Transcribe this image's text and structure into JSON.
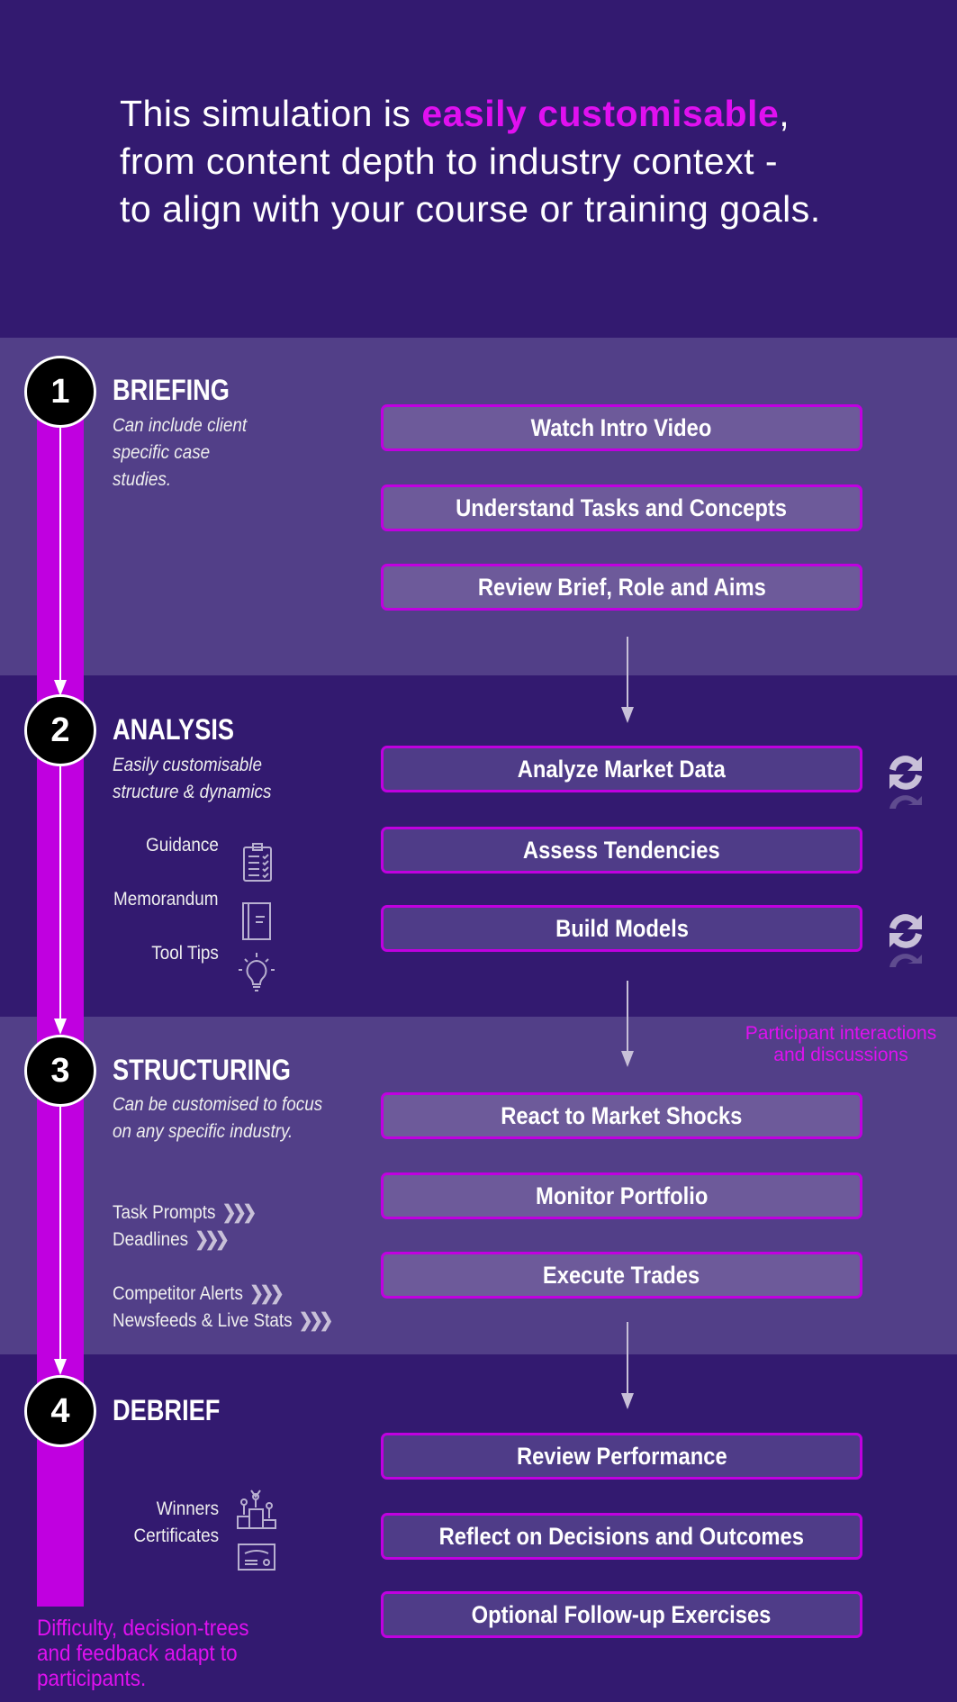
{
  "intro": {
    "line1_pre": "This simulation is ",
    "line1_highlight": "easily customisable",
    "line1_post": ",",
    "line2": "from content depth to industry context -",
    "line3": "to align with your course or training goals."
  },
  "colors": {
    "accent": "#c000e0",
    "highlight": "#e010f0",
    "dark_band": "#331a70",
    "light_band": "#523f88"
  },
  "stages": [
    {
      "number": "1",
      "title": "BRIEFING",
      "description": [
        "Can include client",
        "specific case",
        "studies."
      ],
      "steps": [
        "Watch Intro Video",
        "Understand Tasks and Concepts",
        "Review Brief, Role and Aims"
      ]
    },
    {
      "number": "2",
      "title": "ANALYSIS",
      "description": [
        "Easily customisable",
        "structure & dynamics"
      ],
      "steps": [
        "Analyze Market Data",
        "Assess Tendencies",
        "Build Models"
      ],
      "tools": [
        {
          "label": "Guidance",
          "icon": "clipboard-checklist-icon"
        },
        {
          "label": "Memorandum",
          "icon": "notebook-icon"
        },
        {
          "label": "Tool Tips",
          "icon": "lightbulb-icon"
        }
      ]
    },
    {
      "number": "3",
      "title": "STRUCTURING",
      "description": [
        "Can be customised to focus",
        "on any specific industry."
      ],
      "steps": [
        "React to Market Shocks",
        "Monitor Portfolio",
        "Execute Trades"
      ],
      "features": [
        "Task Prompts",
        "Deadlines",
        "Competitor Alerts",
        "Newsfeeds & Live Stats"
      ]
    },
    {
      "number": "4",
      "title": "DEBRIEF",
      "description": [],
      "steps": [
        "Review Performance",
        "Reflect on Decisions and Outcomes",
        "Optional Follow-up Exercises"
      ],
      "rewards": [
        {
          "label": "Winners",
          "icon": "podium-icon"
        },
        {
          "label": "Certificates",
          "icon": "certificate-icon"
        }
      ]
    }
  ],
  "notes": {
    "interactions": [
      "Participant interactions",
      "and discussions"
    ],
    "adaptive": [
      "Difficulty, decision-trees",
      "and feedback adapt to",
      "participants."
    ]
  }
}
